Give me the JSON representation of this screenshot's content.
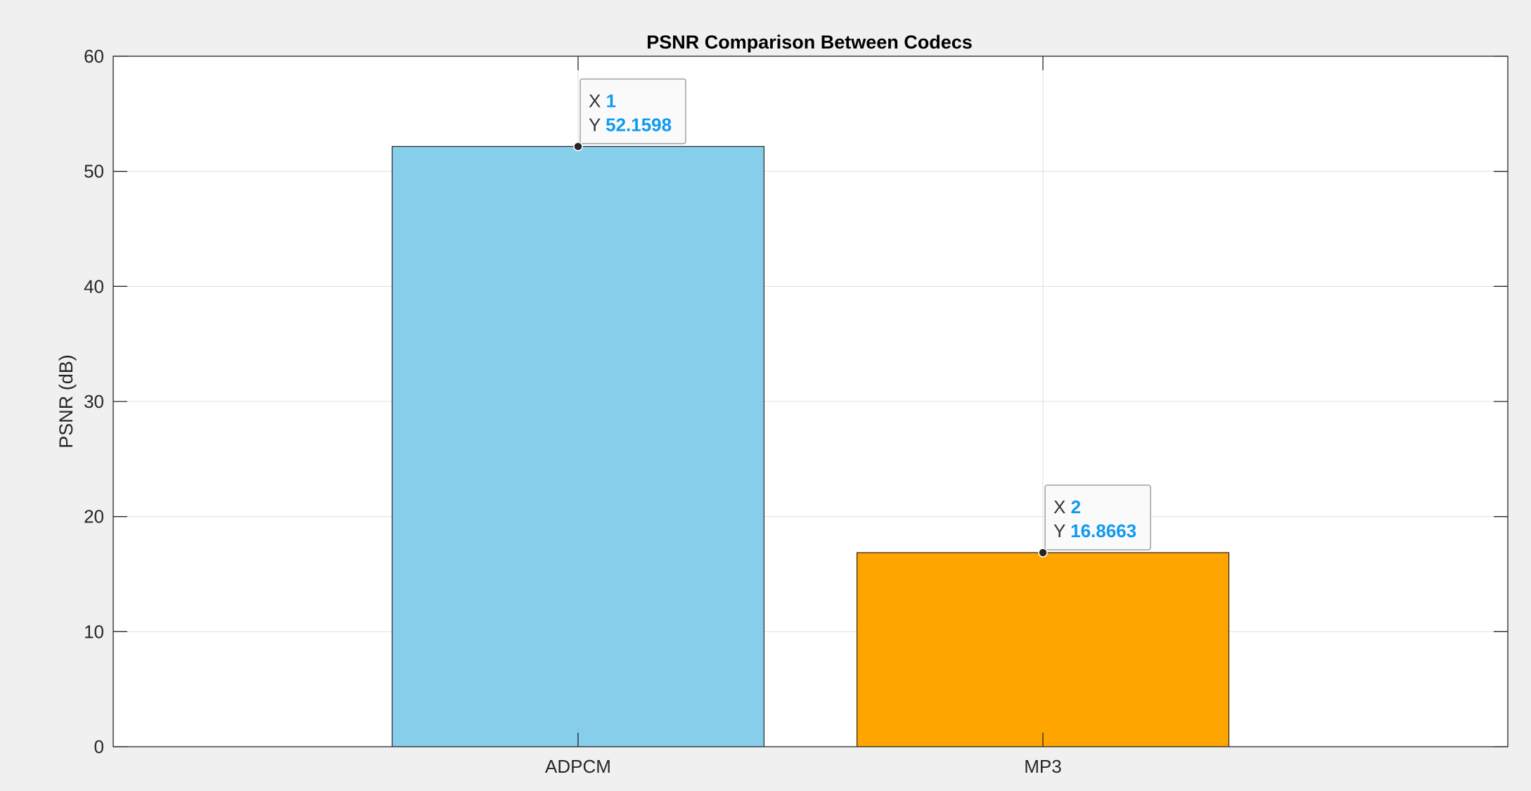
{
  "chart_data": {
    "type": "bar",
    "title": "PSNR Comparison Between Codecs",
    "xlabel": "",
    "ylabel": "PSNR (dB)",
    "categories": [
      "ADPCM",
      "MP3"
    ],
    "values": [
      52.1598,
      16.8663
    ],
    "bar_colors": [
      "#87ceeb",
      "#ffa500"
    ],
    "xlim": [
      0,
      3
    ],
    "ylim": [
      0,
      60
    ],
    "yticks": [
      0,
      10,
      20,
      30,
      40,
      50,
      60
    ],
    "grid": true,
    "datatips": [
      {
        "x_label": "X",
        "x_value": "1",
        "y_label": "Y",
        "y_value": "52.1598"
      },
      {
        "x_label": "X",
        "x_value": "2",
        "y_label": "Y",
        "y_value": "16.8663"
      }
    ]
  },
  "colors": {
    "axes_bg": "#ffffff",
    "figure_bg": "#f0f0f0",
    "axis_line": "#262626",
    "grid": "#dfdfdf",
    "datatip_accent": "#0f9af0",
    "datatip_bg": "#fafafa"
  }
}
